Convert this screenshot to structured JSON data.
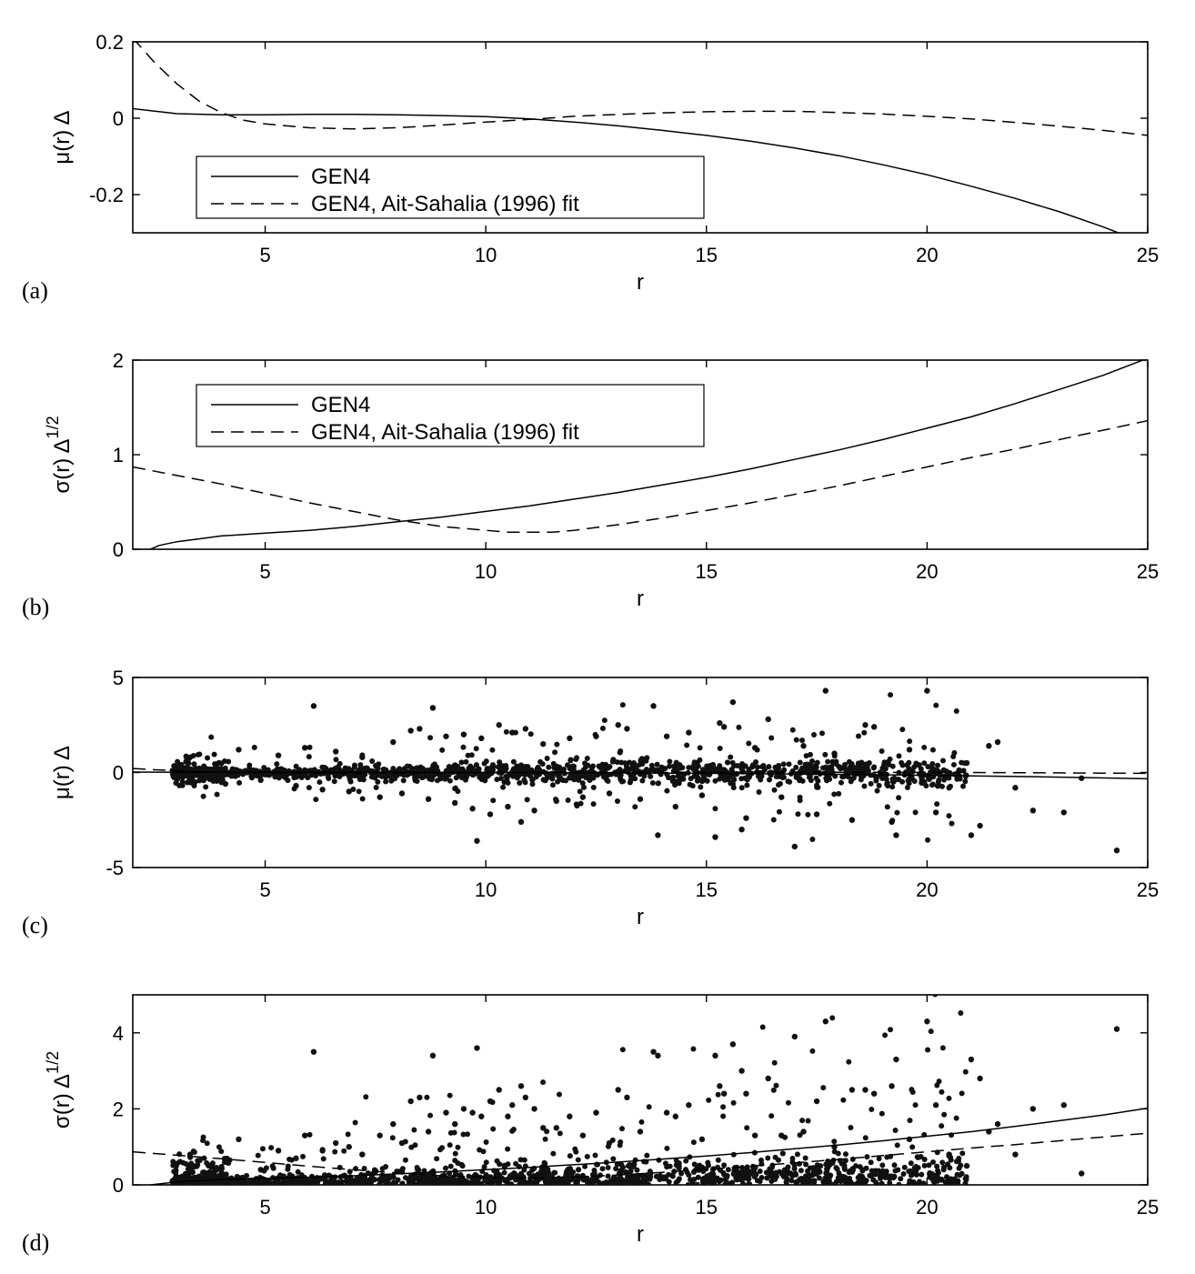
{
  "chart_data": [
    {
      "type": "line",
      "panel_label": "(a)",
      "xlabel": "r",
      "ylabel_main": "μ(r) Δ",
      "ylabel_sup": "",
      "xlim": [
        2,
        25
      ],
      "ylim": [
        -0.3,
        0.2
      ],
      "xticks": [
        5,
        10,
        15,
        20,
        25
      ],
      "yticks": [
        -0.2,
        0,
        0.2
      ],
      "ytick_labels": [
        "-0.2",
        "0",
        "0.2"
      ],
      "grid": false,
      "legend": {
        "placement": "lower-left",
        "entries": [
          "GEN4",
          "GEN4, Ait-Sahalia (1996) fit"
        ]
      },
      "series": [
        {
          "name": "GEN4",
          "style": "solid",
          "x": [
            2,
            3,
            4,
            5,
            6,
            7,
            8,
            9,
            10,
            11,
            12,
            13,
            14,
            15,
            16,
            17,
            18,
            19,
            20,
            21,
            22,
            23,
            24,
            25
          ],
          "y": [
            0.025,
            0.012,
            0.009,
            0.009,
            0.01,
            0.01,
            0.009,
            0.007,
            0.004,
            -0.002,
            -0.01,
            -0.02,
            -0.032,
            -0.045,
            -0.06,
            -0.078,
            -0.098,
            -0.122,
            -0.148,
            -0.178,
            -0.21,
            -0.245,
            -0.285,
            -0.33
          ]
        },
        {
          "name": "GEN4, Ait-Sahalia (1996) fit",
          "style": "dashed",
          "x": [
            2,
            2.5,
            3,
            3.5,
            4,
            4.5,
            5,
            6,
            7,
            8,
            9,
            10,
            11,
            12,
            13,
            14,
            15,
            16,
            17,
            18,
            19,
            20,
            21,
            22,
            23,
            24,
            25
          ],
          "y": [
            0.21,
            0.145,
            0.09,
            0.045,
            0.015,
            -0.005,
            -0.015,
            -0.025,
            -0.028,
            -0.025,
            -0.018,
            -0.01,
            -0.003,
            0.005,
            0.01,
            0.014,
            0.017,
            0.018,
            0.018,
            0.015,
            0.011,
            0.005,
            -0.002,
            -0.011,
            -0.021,
            -0.032,
            -0.045
          ]
        }
      ]
    },
    {
      "type": "line",
      "panel_label": "(b)",
      "xlabel": "r",
      "ylabel_main": "σ(r) Δ",
      "ylabel_sup": "1/2",
      "xlim": [
        2,
        25
      ],
      "ylim": [
        0,
        2
      ],
      "xticks": [
        5,
        10,
        15,
        20,
        25
      ],
      "yticks": [
        0,
        1,
        2
      ],
      "ytick_labels": [
        "0",
        "1",
        "2"
      ],
      "grid": false,
      "legend": {
        "placement": "top-left",
        "entries": [
          "GEN4",
          "GEN4, Ait-Sahalia (1996) fit"
        ]
      },
      "series": [
        {
          "name": "GEN4",
          "style": "solid",
          "x": [
            2.4,
            2.6,
            3,
            3.5,
            4,
            5,
            6,
            7,
            8,
            9,
            10,
            11,
            12,
            13,
            14,
            15,
            16,
            17,
            18,
            19,
            20,
            21,
            22,
            23,
            24,
            25
          ],
          "y": [
            0,
            0.04,
            0.08,
            0.11,
            0.14,
            0.17,
            0.2,
            0.24,
            0.29,
            0.34,
            0.4,
            0.46,
            0.53,
            0.6,
            0.68,
            0.76,
            0.85,
            0.95,
            1.05,
            1.16,
            1.28,
            1.4,
            1.54,
            1.69,
            1.84,
            2.02
          ]
        },
        {
          "name": "GEN4, Ait-Sahalia (1996) fit",
          "style": "dashed",
          "x": [
            2,
            3,
            4,
            5,
            6,
            7,
            8,
            9,
            10,
            10.5,
            11,
            11.5,
            12,
            13,
            14,
            15,
            16,
            17,
            18,
            19,
            20,
            21,
            22,
            23,
            24,
            25
          ],
          "y": [
            0.87,
            0.78,
            0.69,
            0.59,
            0.49,
            0.4,
            0.31,
            0.24,
            0.2,
            0.18,
            0.18,
            0.18,
            0.2,
            0.26,
            0.33,
            0.41,
            0.49,
            0.58,
            0.67,
            0.77,
            0.87,
            0.97,
            1.06,
            1.16,
            1.26,
            1.36
          ]
        }
      ]
    },
    {
      "type": "scatter",
      "panel_label": "(c)",
      "xlabel": "r",
      "ylabel_main": "μ(r) Δ",
      "ylabel_sup": "",
      "xlim": [
        2,
        25
      ],
      "ylim": [
        -5,
        5
      ],
      "xticks": [
        5,
        10,
        15,
        20,
        25
      ],
      "yticks": [
        -5,
        0,
        5
      ],
      "ytick_labels": [
        "-5",
        "0",
        "5"
      ],
      "grid": false,
      "points": [
        [
          2.9,
          0.1
        ],
        [
          3.1,
          0.05
        ],
        [
          3.3,
          0.8
        ],
        [
          4.1,
          -0.6
        ],
        [
          4.4,
          1.2
        ],
        [
          4.9,
          -0.4
        ],
        [
          5.3,
          0.9
        ],
        [
          5.7,
          -0.7
        ],
        [
          5.9,
          1.3
        ],
        [
          6.1,
          3.5
        ],
        [
          6.3,
          -0.9
        ],
        [
          6.6,
          1.1
        ],
        [
          6.9,
          -1.0
        ],
        [
          7.2,
          0.8
        ],
        [
          7.6,
          -1.3
        ],
        [
          7.9,
          1.6
        ],
        [
          8.1,
          -1.1
        ],
        [
          8.3,
          2.2
        ],
        [
          8.5,
          2.3
        ],
        [
          8.7,
          -1.4
        ],
        [
          8.8,
          3.4
        ],
        [
          9.1,
          1.9
        ],
        [
          9.3,
          -1.6
        ],
        [
          9.5,
          2.0
        ],
        [
          9.7,
          -1.9
        ],
        [
          9.8,
          -3.6
        ],
        [
          9.9,
          1.8
        ],
        [
          10.1,
          -2.2
        ],
        [
          10.3,
          2.5
        ],
        [
          10.5,
          -1.8
        ],
        [
          10.6,
          2.1
        ],
        [
          10.8,
          -2.6
        ],
        [
          10.9,
          2.3
        ],
        [
          11.1,
          -2.0
        ],
        [
          11.3,
          1.5
        ],
        [
          11.6,
          -1.5
        ],
        [
          11.9,
          1.8
        ],
        [
          12.2,
          -1.3
        ],
        [
          12.5,
          1.9
        ],
        [
          12.8,
          -1.1
        ],
        [
          13.0,
          2.5
        ],
        [
          13.2,
          2.3
        ],
        [
          13.5,
          -1.4
        ],
        [
          13.8,
          3.5
        ],
        [
          13.9,
          -3.3
        ],
        [
          14.1,
          1.9
        ],
        [
          14.3,
          -1.8
        ],
        [
          14.6,
          2.1
        ],
        [
          14.9,
          -1.2
        ],
        [
          15.2,
          -3.4
        ],
        [
          15.3,
          2.6
        ],
        [
          15.4,
          2.4
        ],
        [
          15.6,
          3.7
        ],
        [
          15.8,
          -3.0
        ],
        [
          15.9,
          -2.4
        ],
        [
          16.1,
          1.3
        ],
        [
          16.4,
          2.8
        ],
        [
          16.7,
          -1.3
        ],
        [
          17.0,
          -3.9
        ],
        [
          17.2,
          1.4
        ],
        [
          17.5,
          -2.2
        ],
        [
          17.7,
          4.3
        ],
        [
          17.9,
          1.0
        ],
        [
          18.3,
          -2.5
        ],
        [
          18.6,
          2.5
        ],
        [
          18.8,
          2.4
        ],
        [
          19.2,
          -2.6
        ],
        [
          19.3,
          -3.3
        ],
        [
          19.6,
          1.2
        ],
        [
          20.0,
          4.3
        ],
        [
          20.2,
          -2.1
        ],
        [
          20.5,
          -0.8
        ],
        [
          20.9,
          0.5
        ],
        [
          21.0,
          -3.3
        ],
        [
          21.2,
          -2.8
        ],
        [
          21.4,
          1.4
        ],
        [
          21.6,
          1.6
        ],
        [
          22.0,
          -0.8
        ],
        [
          22.4,
          -2.0
        ],
        [
          23.1,
          -2.1
        ],
        [
          23.5,
          -0.3
        ],
        [
          24.3,
          -4.1
        ]
      ]
    },
    {
      "type": "scatter",
      "panel_label": "(d)",
      "xlabel": "r",
      "ylabel_main": "σ(r) Δ",
      "ylabel_sup": "1/2",
      "xlim": [
        2,
        25
      ],
      "ylim": [
        0,
        5
      ],
      "xticks": [
        5,
        10,
        15,
        20,
        25
      ],
      "yticks": [
        0,
        2,
        4
      ],
      "ytick_labels": [
        "0",
        "2",
        "4"
      ],
      "grid": false,
      "series": [
        {
          "name": "GEN4",
          "style": "solid",
          "x": [
            2.4,
            3,
            4,
            5,
            6,
            7,
            8,
            9,
            10,
            11,
            12,
            13,
            14,
            15,
            16,
            17,
            18,
            19,
            20,
            21,
            22,
            23,
            24,
            25
          ],
          "y": [
            0,
            0.08,
            0.14,
            0.17,
            0.2,
            0.24,
            0.29,
            0.34,
            0.4,
            0.46,
            0.53,
            0.6,
            0.68,
            0.76,
            0.85,
            0.95,
            1.05,
            1.16,
            1.28,
            1.4,
            1.54,
            1.69,
            1.84,
            2.02
          ]
        },
        {
          "name": "GEN4, Ait-Sahalia (1996) fit",
          "style": "dashed",
          "x": [
            2,
            3,
            4,
            5,
            6,
            7,
            8,
            9,
            10,
            11,
            12,
            13,
            14,
            15,
            16,
            17,
            18,
            19,
            20,
            21,
            22,
            23,
            24,
            25
          ],
          "y": [
            0.87,
            0.78,
            0.69,
            0.59,
            0.49,
            0.4,
            0.31,
            0.24,
            0.2,
            0.18,
            0.2,
            0.26,
            0.33,
            0.41,
            0.49,
            0.58,
            0.67,
            0.77,
            0.87,
            0.97,
            1.06,
            1.16,
            1.26,
            1.36
          ]
        }
      ],
      "points": [
        [
          2.9,
          0.1
        ],
        [
          3.3,
          0.8
        ],
        [
          4.1,
          0.6
        ],
        [
          4.4,
          1.2
        ],
        [
          4.9,
          0.4
        ],
        [
          5.3,
          0.9
        ],
        [
          5.7,
          0.7
        ],
        [
          5.9,
          1.3
        ],
        [
          6.1,
          3.5
        ],
        [
          6.3,
          0.9
        ],
        [
          6.6,
          1.1
        ],
        [
          6.9,
          1.0
        ],
        [
          7.2,
          0.8
        ],
        [
          7.6,
          1.3
        ],
        [
          7.9,
          1.6
        ],
        [
          8.1,
          1.1
        ],
        [
          8.3,
          2.2
        ],
        [
          8.5,
          2.3
        ],
        [
          8.7,
          1.4
        ],
        [
          8.8,
          3.4
        ],
        [
          9.1,
          1.9
        ],
        [
          9.3,
          1.6
        ],
        [
          9.5,
          2.0
        ],
        [
          9.7,
          1.9
        ],
        [
          9.8,
          3.6
        ],
        [
          9.9,
          1.8
        ],
        [
          10.1,
          2.2
        ],
        [
          10.3,
          2.5
        ],
        [
          10.5,
          1.8
        ],
        [
          10.6,
          2.1
        ],
        [
          10.8,
          2.6
        ],
        [
          10.9,
          2.3
        ],
        [
          11.1,
          2.0
        ],
        [
          11.3,
          1.5
        ],
        [
          11.6,
          1.5
        ],
        [
          11.9,
          1.8
        ],
        [
          12.2,
          1.3
        ],
        [
          12.5,
          1.9
        ],
        [
          12.8,
          1.1
        ],
        [
          13.0,
          2.5
        ],
        [
          13.2,
          2.3
        ],
        [
          13.5,
          1.4
        ],
        [
          13.8,
          3.5
        ],
        [
          13.9,
          3.4
        ],
        [
          14.1,
          1.9
        ],
        [
          14.3,
          1.8
        ],
        [
          14.6,
          2.1
        ],
        [
          14.9,
          1.2
        ],
        [
          15.2,
          3.4
        ],
        [
          15.3,
          2.6
        ],
        [
          15.4,
          2.4
        ],
        [
          15.6,
          3.7
        ],
        [
          15.8,
          3.0
        ],
        [
          15.9,
          2.4
        ],
        [
          16.1,
          1.3
        ],
        [
          16.4,
          2.8
        ],
        [
          16.7,
          1.3
        ],
        [
          17.0,
          3.9
        ],
        [
          17.2,
          1.4
        ],
        [
          17.5,
          2.2
        ],
        [
          17.7,
          4.3
        ],
        [
          17.9,
          1.0
        ],
        [
          18.3,
          2.5
        ],
        [
          18.6,
          2.5
        ],
        [
          18.8,
          2.4
        ],
        [
          19.2,
          2.6
        ],
        [
          19.3,
          3.3
        ],
        [
          19.6,
          1.2
        ],
        [
          20.0,
          4.3
        ],
        [
          20.2,
          2.1
        ],
        [
          20.5,
          0.8
        ],
        [
          20.9,
          0.5
        ],
        [
          21.0,
          3.3
        ],
        [
          21.2,
          2.8
        ],
        [
          21.4,
          1.4
        ],
        [
          21.6,
          1.6
        ],
        [
          22.0,
          0.8
        ],
        [
          22.4,
          2.0
        ],
        [
          23.1,
          2.1
        ],
        [
          23.5,
          0.3
        ],
        [
          24.3,
          4.1
        ]
      ]
    }
  ]
}
